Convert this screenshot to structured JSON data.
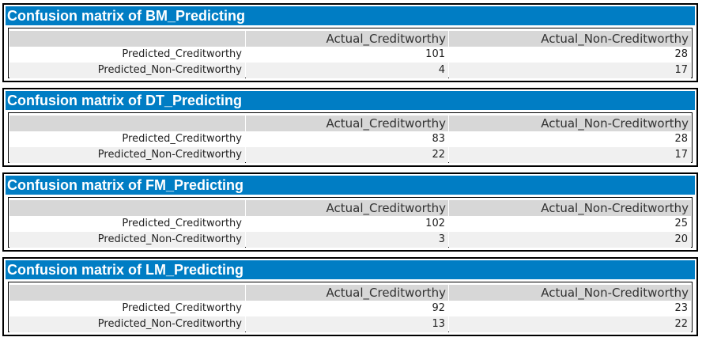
{
  "matrices": [
    {
      "title": "Confusion matrix of BM_Predicting",
      "col_headers": [
        "",
        "Actual_Creditworthy",
        "Actual_Non-Creditworthy"
      ],
      "rows": [
        {
          "label": "Predicted_Creditworthy",
          "values": [
            "101",
            "28"
          ]
        },
        {
          "label": "Predicted_Non-Creditworthy",
          "values": [
            "4",
            "17"
          ]
        }
      ]
    },
    {
      "title": "Confusion matrix of DT_Predicting",
      "col_headers": [
        "",
        "Actual_Creditworthy",
        "Actual_Non-Creditworthy"
      ],
      "rows": [
        {
          "label": "Predicted_Creditworthy",
          "values": [
            "83",
            "28"
          ]
        },
        {
          "label": "Predicted_Non-Creditworthy",
          "values": [
            "22",
            "17"
          ]
        }
      ]
    },
    {
      "title": "Confusion matrix of FM_Predicting",
      "col_headers": [
        "",
        "Actual_Creditworthy",
        "Actual_Non-Creditworthy"
      ],
      "rows": [
        {
          "label": "Predicted_Creditworthy",
          "values": [
            "102",
            "25"
          ]
        },
        {
          "label": "Predicted_Non-Creditworthy",
          "values": [
            "3",
            "20"
          ]
        }
      ]
    },
    {
      "title": "Confusion matrix of LM_Predicting",
      "col_headers": [
        "",
        "Actual_Creditworthy",
        "Actual_Non-Creditworthy"
      ],
      "rows": [
        {
          "label": "Predicted_Creditworthy",
          "values": [
            "92",
            "23"
          ]
        },
        {
          "label": "Predicted_Non-Creditworthy",
          "values": [
            "13",
            "22"
          ]
        }
      ]
    }
  ],
  "colors": {
    "title_bar": "#007dc4",
    "header_cell": "#d7d7d7",
    "alt_row": "#f0f0f0",
    "border": "#000000"
  }
}
